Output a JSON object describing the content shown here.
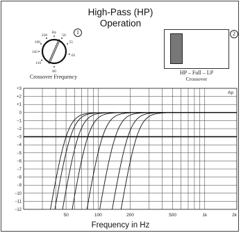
{
  "title_line1": "High-Pass (HP)",
  "title_line2": "Operation",
  "knob": {
    "label": "Crossover Frequency",
    "number": "1",
    "dial_labels": [
      "230",
      "Hz",
      "50",
      "190",
      "55",
      "145",
      "65",
      "110",
      "80"
    ]
  },
  "switch": {
    "label": "HP – Full – LP",
    "sublabel": "Crossover",
    "number": "2",
    "lever_color": "#777777"
  },
  "chart_data": {
    "type": "line",
    "title": "",
    "xlabel": "Frequency in Hz",
    "ylabel": "",
    "corner_label": "Ap",
    "x_scale": "log",
    "xlim": [
      20,
      2000
    ],
    "ylim": [
      -12,
      3
    ],
    "x_tick_labels": [
      {
        "value": 50,
        "label": "50"
      },
      {
        "value": 100,
        "label": "100"
      },
      {
        "value": 200,
        "label": "200"
      },
      {
        "value": 500,
        "label": "500"
      },
      {
        "value": 1000,
        "label": "1k"
      },
      {
        "value": 2000,
        "label": "2k"
      }
    ],
    "y_ticks": [
      3,
      2,
      1,
      0,
      -1,
      -2,
      -3,
      -4,
      -5,
      -6,
      -7,
      -8,
      -9,
      -10,
      -11,
      -12
    ],
    "y_tick_labels": [
      "+3",
      "+2",
      "+1",
      "0",
      "−1",
      "−2",
      "−3",
      "−4",
      "−5",
      "−6",
      "−7",
      "−8",
      "−9",
      "−10",
      "−11",
      "−12"
    ],
    "grid": true,
    "reference_line_db": -3,
    "series": [
      {
        "corner_hz": 50
      },
      {
        "corner_hz": 55
      },
      {
        "corner_hz": 65
      },
      {
        "corner_hz": 80
      },
      {
        "corner_hz": 110
      },
      {
        "corner_hz": 145
      },
      {
        "corner_hz": 190
      },
      {
        "corner_hz": 230
      }
    ]
  }
}
